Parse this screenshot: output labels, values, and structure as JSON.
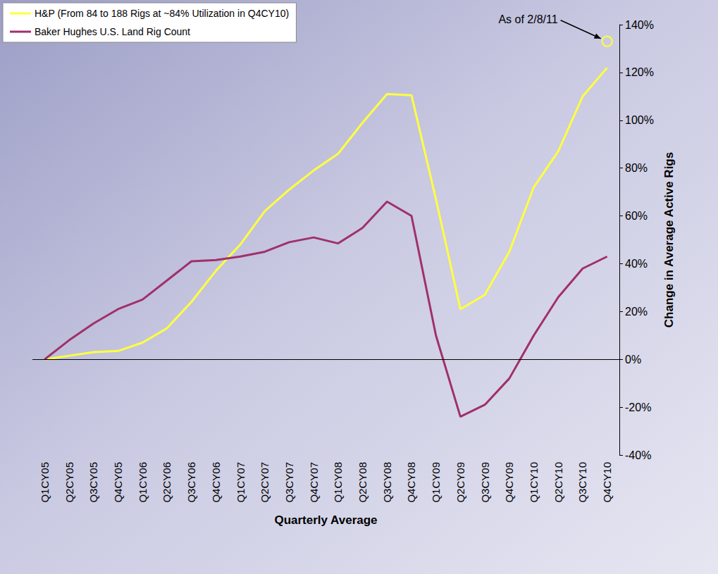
{
  "chart_data": {
    "type": "line",
    "categories": [
      "Q1CY05",
      "Q2CY05",
      "Q3CY05",
      "Q4CY05",
      "Q1CY06",
      "Q2CY06",
      "Q3CY06",
      "Q4CY06",
      "Q1CY07",
      "Q2CY07",
      "Q3CY07",
      "Q4CY07",
      "Q1CY08",
      "Q2CY08",
      "Q3CY08",
      "Q4CY08",
      "Q1CY09",
      "Q2CY09",
      "Q3CY09",
      "Q4CY09",
      "Q1CY10",
      "Q2CY10",
      "Q3CY10",
      "Q4CY10"
    ],
    "series": [
      {
        "name": "H&P (From 84 to 188 Rigs at ~84% Utilization in Q4CY10)",
        "color": "#ffff40",
        "values": [
          0,
          1.5,
          3,
          3.5,
          7,
          13,
          24,
          37,
          48,
          62,
          71,
          79,
          86,
          99,
          111,
          110.5,
          67,
          21,
          27,
          45,
          72,
          87,
          110,
          122
        ]
      },
      {
        "name": "Baker Hughes U.S. Land Rig Count",
        "color": "#a0306a",
        "values": [
          0,
          8,
          15,
          21,
          25,
          33,
          41,
          41.5,
          43,
          45,
          49,
          51,
          48.5,
          55,
          66,
          60,
          10,
          -24,
          -19,
          -8,
          10,
          26,
          38,
          43
        ]
      }
    ],
    "ylim": [
      -40,
      140
    ],
    "yticks": [
      {
        "value": -40,
        "label": "-40%"
      },
      {
        "value": -20,
        "label": "-20%"
      },
      {
        "value": 0,
        "label": "0%"
      },
      {
        "value": 20,
        "label": "20%"
      },
      {
        "value": 40,
        "label": "40%"
      },
      {
        "value": 60,
        "label": "60%"
      },
      {
        "value": 80,
        "label": "80%"
      },
      {
        "value": 100,
        "label": "100%"
      },
      {
        "value": 120,
        "label": "120%"
      },
      {
        "value": 140,
        "label": "140%"
      }
    ],
    "x_label": "Quarterly Average",
    "y_label": "Change in Average Active Rigs",
    "grid": false,
    "legend": "upper left",
    "annotations": [
      {
        "text": "As of 2/8/11",
        "category": "Q4CY10",
        "value": 133,
        "color": "#ffff40",
        "marker": "circle"
      }
    ]
  }
}
